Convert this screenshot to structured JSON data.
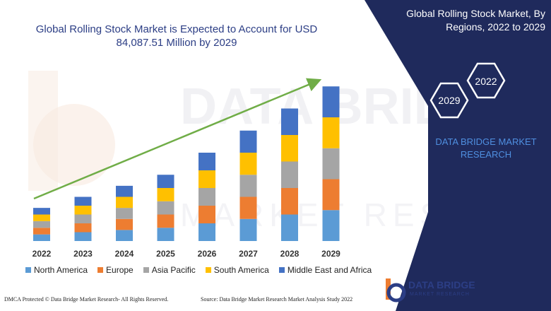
{
  "chart_data": {
    "type": "bar",
    "stacked": true,
    "title": "Global Rolling Stock Market is Expected to Account for USD 84,087.51 Million by 2029",
    "categories": [
      "2022",
      "2023",
      "2024",
      "2025",
      "2026",
      "2027",
      "2028",
      "2029"
    ],
    "series": [
      {
        "name": "North America",
        "color": "#5b9bd5",
        "values": [
          9,
          12,
          15,
          18,
          24,
          30,
          36,
          42
        ]
      },
      {
        "name": "Europe",
        "color": "#ed7d31",
        "values": [
          9,
          12,
          15,
          18,
          24,
          30,
          36,
          42
        ]
      },
      {
        "name": "Asia Pacific",
        "color": "#a5a5a5",
        "values": [
          9,
          12,
          15,
          18,
          24,
          30,
          36,
          42
        ]
      },
      {
        "name": "South America",
        "color": "#ffc000",
        "values": [
          9,
          12,
          15,
          18,
          24,
          30,
          36,
          42
        ]
      },
      {
        "name": "Middle East and Africa",
        "color": "#4472c4",
        "values": [
          9,
          12,
          15,
          18,
          24,
          30,
          36,
          42
        ]
      }
    ],
    "ylim": [
      0,
      240
    ],
    "grid": false,
    "legend_position": "bottom",
    "trend_arrow": true,
    "trend_color": "#70ad47"
  },
  "side_panel": {
    "title": "Global Rolling Stock Market, By Regions, 2022 to 2029",
    "hex_labels": [
      "2022",
      "2029"
    ],
    "brand_text": "DATA BRIDGE MARKET RESEARCH",
    "panel_color": "#1f2a5c"
  },
  "footer": {
    "left": "DMCA Protected © Data Bridge Market Research- All Rights Reserved.",
    "source": "Source: Data Bridge Market Research Market Analysis Study 2022"
  },
  "logo": {
    "name": "DATA BRIDGE",
    "sub": "MARKET RESEARCH"
  }
}
